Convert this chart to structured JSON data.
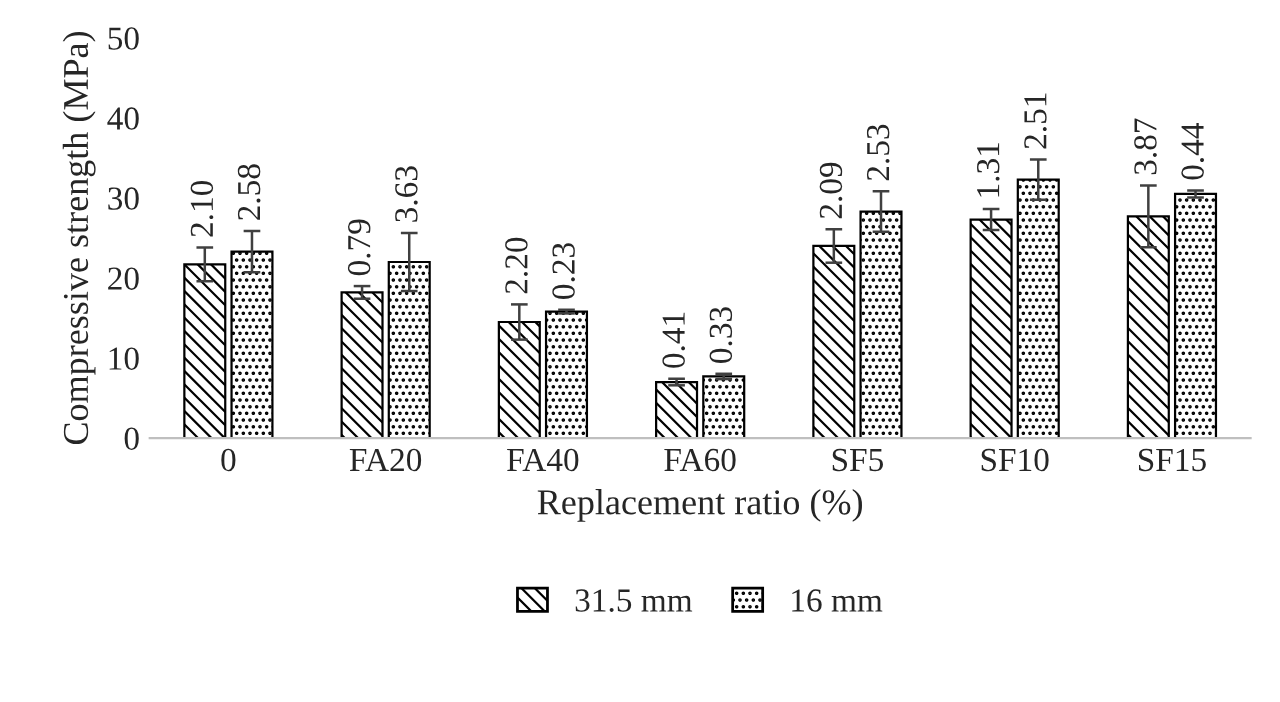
{
  "chart_data": {
    "type": "bar",
    "xlabel": "Replacement ratio (%)",
    "ylabel": "Compressive strength (MPa)",
    "categories": [
      "0",
      "FA20",
      "FA40",
      "FA60",
      "SF5",
      "SF10",
      "SF15"
    ],
    "series": [
      {
        "name": "31.5 mm",
        "color": "#000000",
        "values": [
          21.7,
          18.2,
          14.5,
          7.0,
          24.0,
          27.3,
          27.7
        ],
        "errors": [
          2.1,
          0.79,
          2.2,
          0.41,
          2.09,
          1.31,
          3.87
        ]
      },
      {
        "name": "16 mm",
        "color": "#000000",
        "values": [
          23.3,
          22.0,
          15.8,
          7.7,
          28.3,
          32.3,
          30.5
        ],
        "errors": [
          2.58,
          3.63,
          0.23,
          0.33,
          2.53,
          2.51,
          0.44
        ]
      }
    ],
    "annotations": [
      "2.10",
      "2.58",
      "0.79",
      "3.63",
      "2.20",
      "0.23",
      "0.41",
      "0.33",
      "2.09",
      "2.53",
      "1.31",
      "2.51",
      "3.87",
      "0.44"
    ],
    "ylim": [
      0,
      50
    ],
    "yticks": [
      0,
      10,
      20,
      30,
      40,
      50
    ],
    "grid": false,
    "legend": "bottom"
  }
}
